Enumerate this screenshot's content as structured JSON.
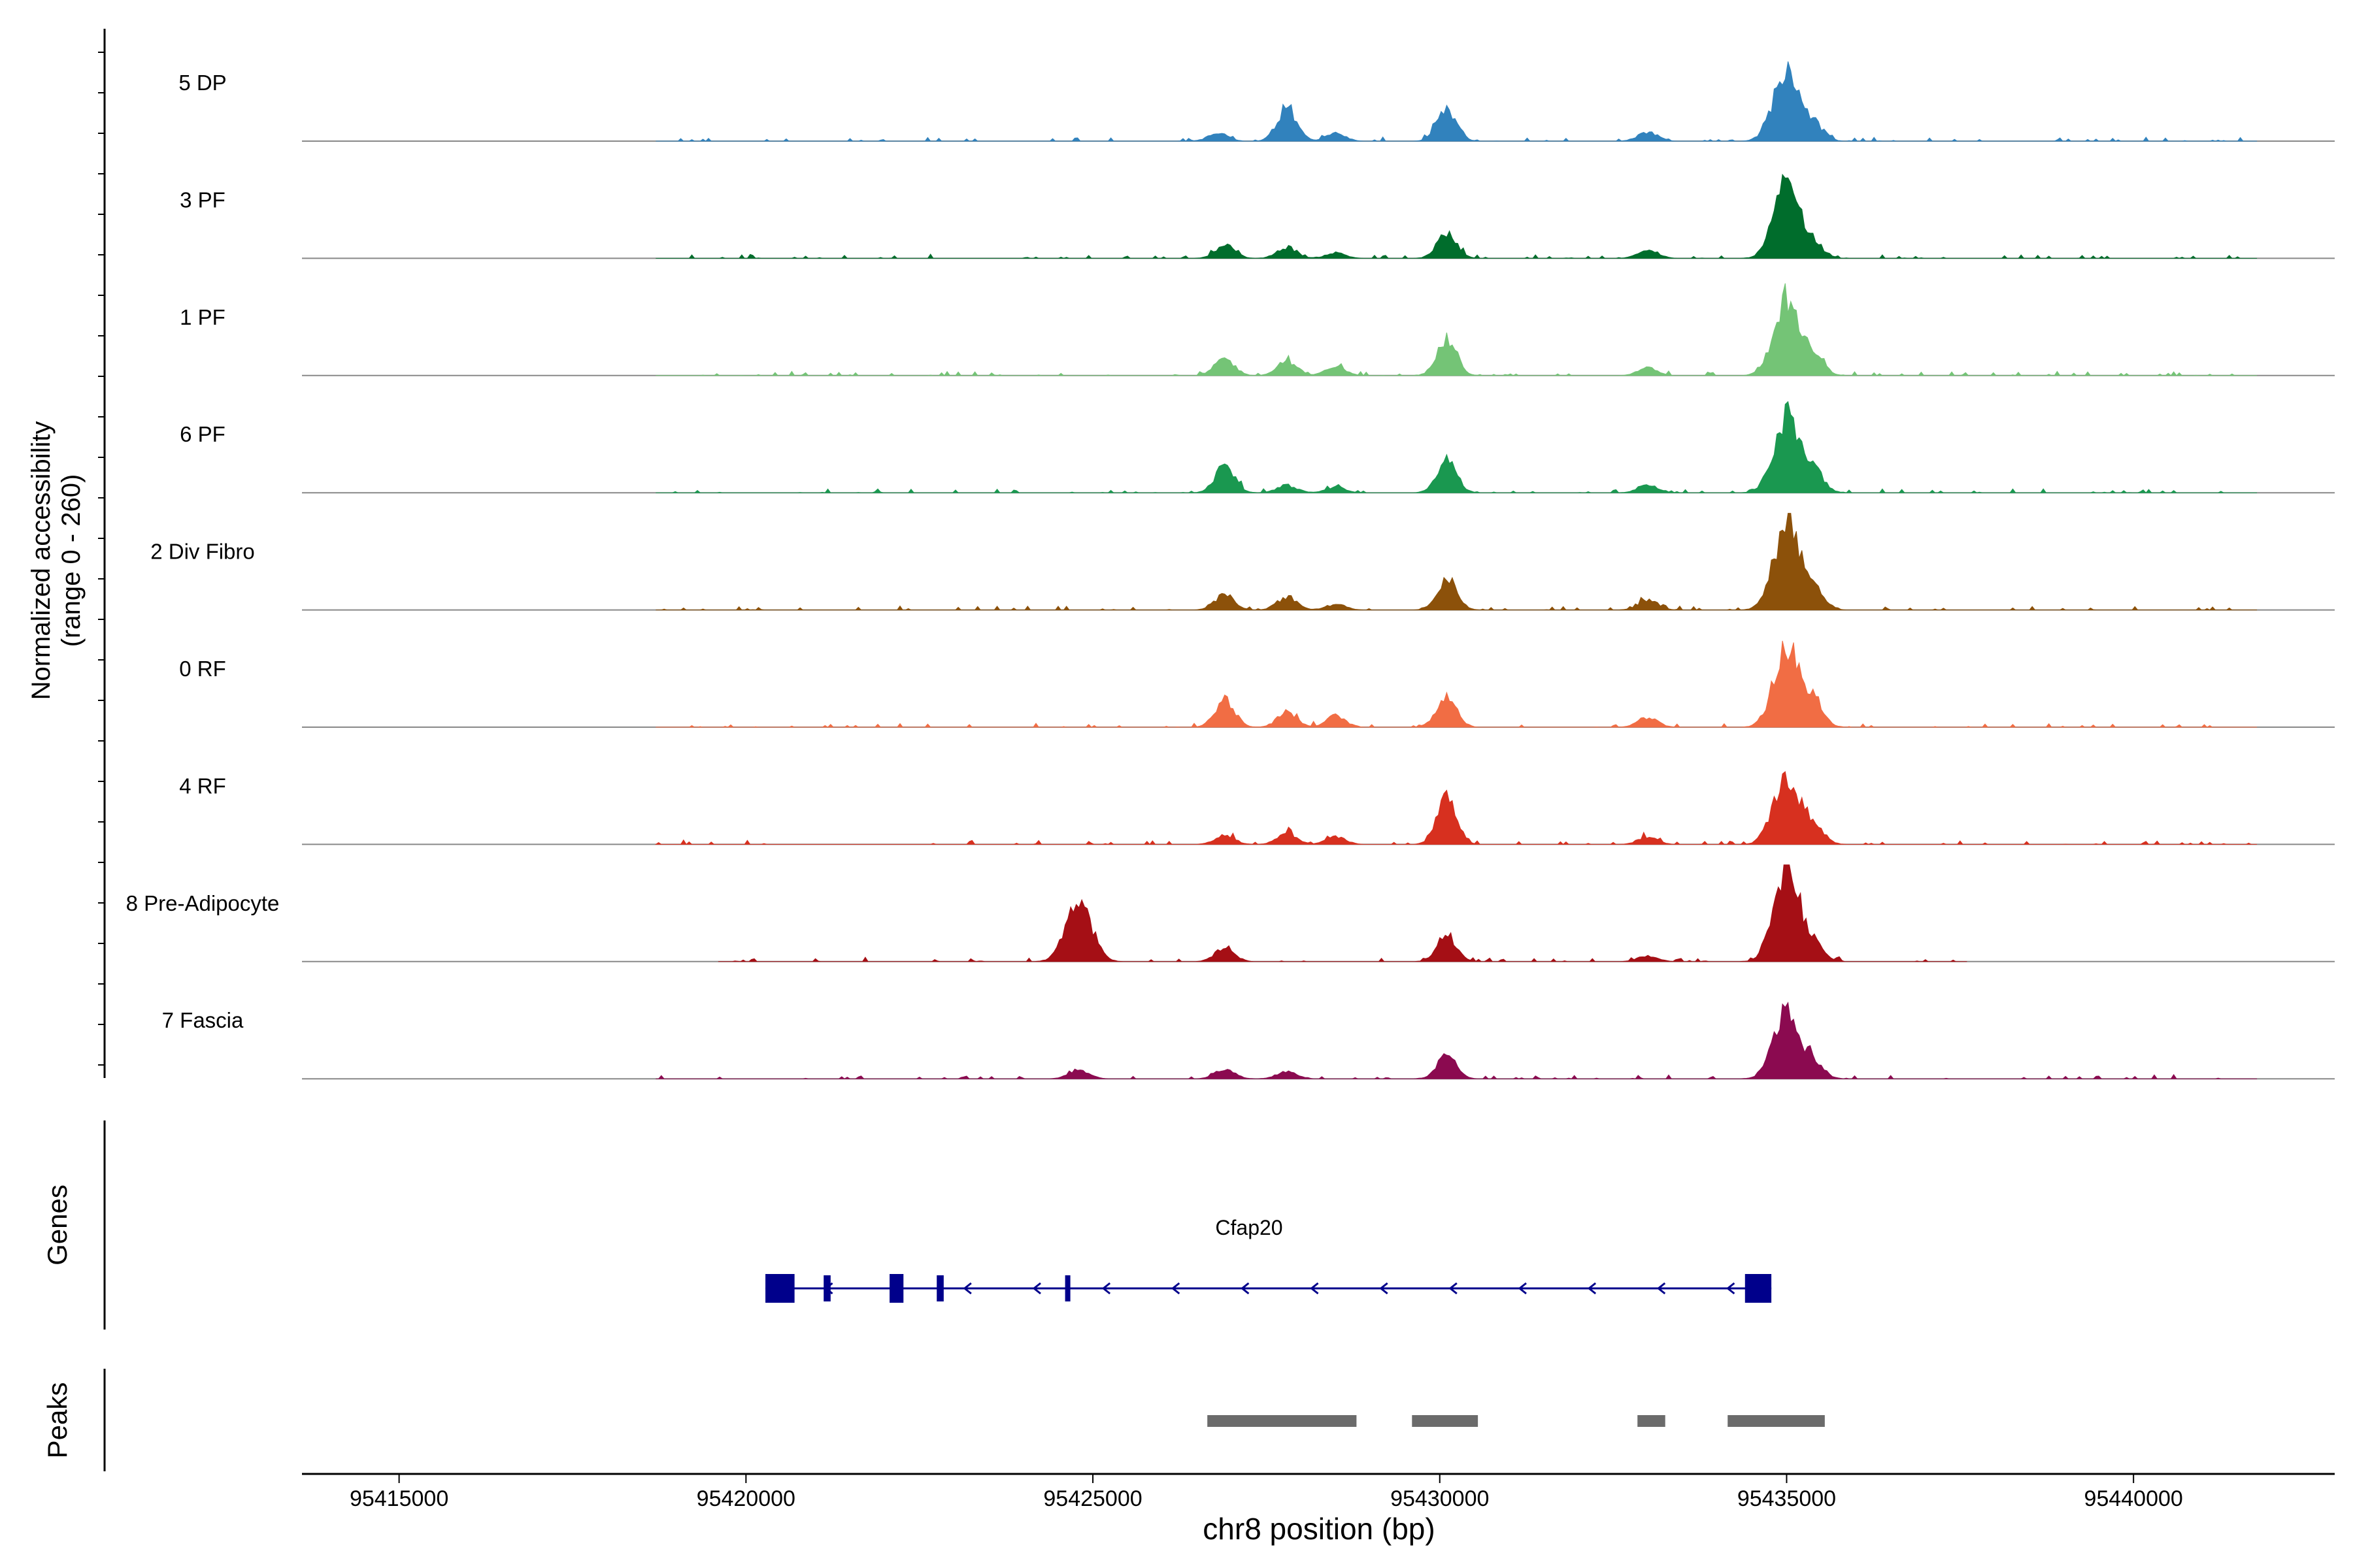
{
  "chart_data": {
    "type": "area",
    "title": "",
    "ylabel": "Normalized accessibility",
    "ylabel_range": "(range 0 - 260)",
    "xlabel": "chr8 position (bp)",
    "xlim": [
      95413600,
      95442900
    ],
    "xticks": [
      {
        "value": 95415000,
        "label": "95415000"
      },
      {
        "value": 95420000,
        "label": "95420000"
      },
      {
        "value": 95425000,
        "label": "95425000"
      },
      {
        "value": 95430000,
        "label": "95430000"
      },
      {
        "value": 95435000,
        "label": "95435000"
      },
      {
        "value": 95440000,
        "label": "95440000"
      }
    ],
    "ylim": [
      0,
      260
    ],
    "peak_centers": [
      95426900,
      95427800,
      95428500,
      95430100,
      95433000,
      95435000,
      95435400
    ],
    "series": [
      {
        "name": "5 DP",
        "color": "#3182bd",
        "range": [
          95418700,
          95441800
        ],
        "peaks": [
          [
            95426800,
            20
          ],
          [
            95427800,
            90
          ],
          [
            95428500,
            20
          ],
          [
            95430100,
            80
          ],
          [
            95433000,
            25
          ],
          [
            95435000,
            200
          ],
          [
            95435400,
            40
          ]
        ]
      },
      {
        "name": "3 PF",
        "color": "#006d2c",
        "range": [
          95418700,
          95441800
        ],
        "peaks": [
          [
            95426900,
            35
          ],
          [
            95427800,
            30
          ],
          [
            95428500,
            15
          ],
          [
            95430100,
            65
          ],
          [
            95433000,
            25
          ],
          [
            95435000,
            195
          ],
          [
            95435400,
            35
          ]
        ]
      },
      {
        "name": "1 PF",
        "color": "#74c476",
        "range": [
          95418700,
          95441800
        ],
        "peaks": [
          [
            95426900,
            45
          ],
          [
            95427800,
            40
          ],
          [
            95428500,
            25
          ],
          [
            95430100,
            95
          ],
          [
            95433000,
            20
          ],
          [
            95435000,
            210
          ],
          [
            95435400,
            50
          ]
        ]
      },
      {
        "name": "6 PF",
        "color": "#1a9850",
        "range": [
          95418700,
          95441800
        ],
        "peaks": [
          [
            95426900,
            70
          ],
          [
            95427800,
            20
          ],
          [
            95428500,
            15
          ],
          [
            95430100,
            90
          ],
          [
            95433000,
            20
          ],
          [
            95435000,
            205
          ],
          [
            95435400,
            55
          ]
        ]
      },
      {
        "name": "2 Div Fibro",
        "color": "#8c510a",
        "range": [
          95418700,
          95441800
        ],
        "peaks": [
          [
            95426900,
            40
          ],
          [
            95427800,
            35
          ],
          [
            95428500,
            15
          ],
          [
            95430100,
            85
          ],
          [
            95433000,
            25
          ],
          [
            95435000,
            230
          ],
          [
            95435400,
            55
          ]
        ]
      },
      {
        "name": "0 RF",
        "color": "#f16d44",
        "range": [
          95418700,
          95441800
        ],
        "peaks": [
          [
            95426900,
            75
          ],
          [
            95427800,
            40
          ],
          [
            95428500,
            30
          ],
          [
            95430100,
            85
          ],
          [
            95433000,
            25
          ],
          [
            95435000,
            215
          ],
          [
            95435400,
            60
          ]
        ]
      },
      {
        "name": "4 RF",
        "color": "#d7301f",
        "range": [
          95418700,
          95441800
        ],
        "peaks": [
          [
            95426900,
            25
          ],
          [
            95427800,
            30
          ],
          [
            95428500,
            20
          ],
          [
            95430100,
            120
          ],
          [
            95433000,
            20
          ],
          [
            95435000,
            190
          ],
          [
            95435400,
            50
          ]
        ]
      },
      {
        "name": "8 Pre-Adipocyte",
        "color": "#a50f15",
        "range": [
          95419600,
          95437600
        ],
        "peaks": [
          [
            95424800,
            155
          ],
          [
            95426900,
            35
          ],
          [
            95430100,
            70
          ],
          [
            95433000,
            15
          ],
          [
            95435000,
            260
          ],
          [
            95435400,
            40
          ]
        ]
      },
      {
        "name": "7 Fascia",
        "color": "#8b0a50",
        "range": [
          95418700,
          95441800
        ],
        "peaks": [
          [
            95424800,
            25
          ],
          [
            95426900,
            25
          ],
          [
            95427800,
            20
          ],
          [
            95430100,
            60
          ],
          [
            95435000,
            175
          ],
          [
            95435400,
            40
          ]
        ]
      }
    ],
    "gene_track": {
      "label": "Genes",
      "name": "Cfap20",
      "strand": "-",
      "color": "#00008b",
      "start": 95420280,
      "end": 95434780,
      "exons": [
        [
          95420280,
          95420700
        ],
        [
          95421120,
          95421220
        ],
        [
          95422070,
          95422270
        ],
        [
          95422750,
          95422850
        ],
        [
          95424600,
          95424660
        ],
        [
          95434400,
          95434780
        ]
      ]
    },
    "peak_track": {
      "label": "Peaks",
      "color": "#6b6b6b",
      "peaks": [
        [
          95426650,
          95428800
        ],
        [
          95429600,
          95430550
        ],
        [
          95432850,
          95433250
        ],
        [
          95434150,
          95435550
        ]
      ]
    }
  }
}
